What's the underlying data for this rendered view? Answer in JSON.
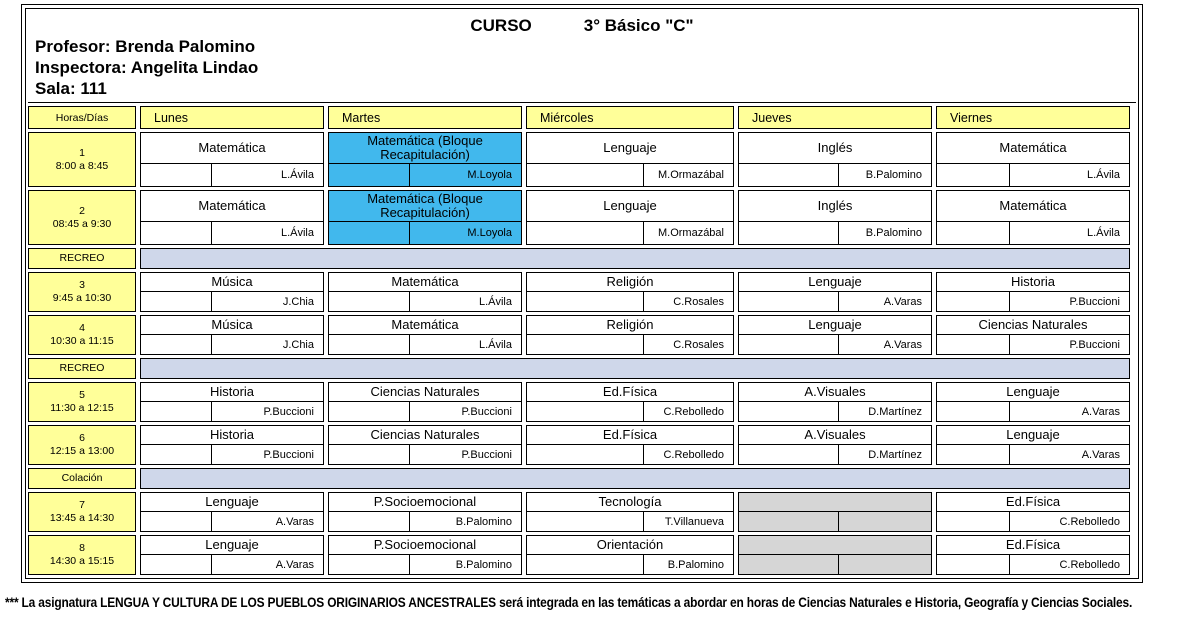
{
  "header": {
    "title_label": "CURSO",
    "title_value": "3° Básico \"C\"",
    "lines": [
      "Profesor: Brenda Palomino",
      "Inspectora: Angelita Lindao",
      "Sala: 111"
    ]
  },
  "columns": [
    "Horas/Días",
    "Lunes",
    "Martes",
    "Miércoles",
    "Jueves",
    "Viernes"
  ],
  "rows": [
    {
      "type": "period",
      "num": "1",
      "time": "8:00 a 8:45",
      "tall": true,
      "cells": [
        {
          "subject": "Matemática",
          "teacher": "L.Ávila"
        },
        {
          "subject": "Matemática (Bloque Recapitulación)",
          "teacher": "M.Loyola",
          "highlight": "blue"
        },
        {
          "subject": "Lenguaje",
          "teacher": "M.Ormazábal"
        },
        {
          "subject": "Inglés",
          "teacher": "B.Palomino"
        },
        {
          "subject": "Matemática",
          "teacher": "L.Ávila"
        }
      ]
    },
    {
      "type": "period",
      "num": "2",
      "time": "08:45 a 9:30",
      "tall": true,
      "cells": [
        {
          "subject": "Matemática",
          "teacher": "L.Ávila"
        },
        {
          "subject": "Matemática (Bloque Recapitulación)",
          "teacher": "M.Loyola",
          "highlight": "blue"
        },
        {
          "subject": "Lenguaje",
          "teacher": "M.Ormazábal"
        },
        {
          "subject": "Inglés",
          "teacher": "B.Palomino"
        },
        {
          "subject": "Matemática",
          "teacher": "L.Ávila"
        }
      ]
    },
    {
      "type": "break",
      "label": "RECREO"
    },
    {
      "type": "period",
      "num": "3",
      "time": "9:45 a 10:30",
      "cells": [
        {
          "subject": "Música",
          "teacher": "J.Chia"
        },
        {
          "subject": "Matemática",
          "teacher": "L.Ávila"
        },
        {
          "subject": "Religión",
          "teacher": "C.Rosales"
        },
        {
          "subject": "Lenguaje",
          "teacher": "A.Varas"
        },
        {
          "subject": "Historia",
          "teacher": "P.Buccioni"
        }
      ]
    },
    {
      "type": "period",
      "num": "4",
      "time": "10:30 a 11:15",
      "cells": [
        {
          "subject": "Música",
          "teacher": "J.Chia"
        },
        {
          "subject": "Matemática",
          "teacher": "L.Ávila"
        },
        {
          "subject": "Religión",
          "teacher": "C.Rosales"
        },
        {
          "subject": "Lenguaje",
          "teacher": "A.Varas"
        },
        {
          "subject": "Ciencias Naturales",
          "teacher": "P.Buccioni"
        }
      ]
    },
    {
      "type": "break",
      "label": "RECREO"
    },
    {
      "type": "period",
      "num": "5",
      "time": "11:30 a 12:15",
      "cells": [
        {
          "subject": "Historia",
          "teacher": "P.Buccioni"
        },
        {
          "subject": "Ciencias Naturales",
          "teacher": "P.Buccioni"
        },
        {
          "subject": "Ed.Física",
          "teacher": "C.Rebolledo"
        },
        {
          "subject": "A.Visuales",
          "teacher": "D.Martínez"
        },
        {
          "subject": "Lenguaje",
          "teacher": "A.Varas"
        }
      ]
    },
    {
      "type": "period",
      "num": "6",
      "time": "12:15 a 13:00",
      "cells": [
        {
          "subject": "Historia",
          "teacher": "P.Buccioni"
        },
        {
          "subject": "Ciencias Naturales",
          "teacher": "P.Buccioni"
        },
        {
          "subject": "Ed.Física",
          "teacher": "C.Rebolledo"
        },
        {
          "subject": "A.Visuales",
          "teacher": "D.Martínez"
        },
        {
          "subject": "Lenguaje",
          "teacher": "A.Varas"
        }
      ]
    },
    {
      "type": "break",
      "label": "Colación"
    },
    {
      "type": "period",
      "num": "7",
      "time": "13:45 a 14:30",
      "cells": [
        {
          "subject": "Lenguaje",
          "teacher": "A.Varas"
        },
        {
          "subject": "P.Socioemocional",
          "teacher": "B.Palomino"
        },
        {
          "subject": "Tecnología",
          "teacher": "T.Villanueva"
        },
        {
          "subject": "",
          "teacher": "",
          "highlight": "gray"
        },
        {
          "subject": "Ed.Física",
          "teacher": "C.Rebolledo"
        }
      ]
    },
    {
      "type": "period",
      "num": "8",
      "time": "14:30 a 15:15",
      "cells": [
        {
          "subject": "Lenguaje",
          "teacher": "A.Varas"
        },
        {
          "subject": "P.Socioemocional",
          "teacher": "B.Palomino"
        },
        {
          "subject": "Orientación",
          "teacher": "B.Palomino"
        },
        {
          "subject": "",
          "teacher": "",
          "highlight": "gray"
        },
        {
          "subject": "Ed.Física",
          "teacher": "C.Rebolledo"
        }
      ]
    }
  ],
  "footnote": "*** La asignatura LENGUA Y CULTURA DE LOS PUEBLOS ORIGINARIOS ANCESTRALES será integrada en las temáticas a abordar en horas de Ciencias Naturales e Historia, Geografía y Ciencias Sociales.",
  "colors": {
    "yellow": "#FFFF99",
    "blue": "#41B8ED",
    "band": "#CFD7EA",
    "gray": "#D6D6D6"
  }
}
